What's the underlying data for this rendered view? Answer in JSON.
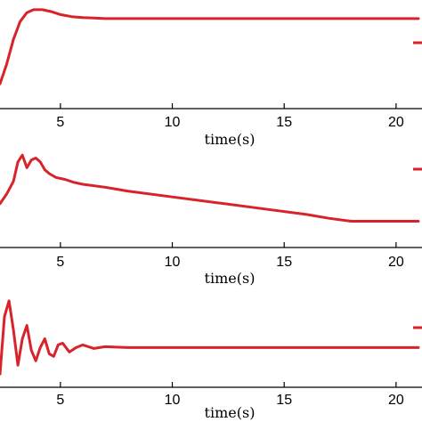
{
  "colors": {
    "series": "#d8232a",
    "axis": "#000000",
    "background": "#ffffff"
  },
  "chart_data": [
    {
      "type": "line",
      "xlabel": "time(s)",
      "xticks": [
        5,
        10,
        15,
        20
      ],
      "xlim": [
        2.3,
        21
      ],
      "ylim": [
        0,
        1.08
      ],
      "legend": "right, partially cropped",
      "grid": false,
      "series": [
        {
          "x": [
            2.3,
            2.6,
            2.9,
            3.2,
            3.5,
            3.8,
            4.2,
            4.6,
            5.0,
            5.5,
            6.0,
            6.5,
            7.0,
            8.0,
            9.0,
            21.0
          ],
          "y": [
            0.25,
            0.45,
            0.7,
            0.88,
            0.97,
            1.0,
            1.0,
            0.98,
            0.95,
            0.93,
            0.92,
            0.915,
            0.91,
            0.91,
            0.91,
            0.91
          ]
        }
      ]
    },
    {
      "type": "line",
      "xlabel": "time(s)",
      "xticks": [
        5,
        10,
        15,
        20
      ],
      "xlim": [
        2.3,
        21
      ],
      "ylim": [
        0,
        1.08
      ],
      "legend": "right, partially cropped",
      "grid": false,
      "series": [
        {
          "x": [
            2.3,
            2.6,
            2.9,
            3.1,
            3.3,
            3.5,
            3.7,
            3.9,
            4.1,
            4.3,
            4.5,
            4.8,
            5.2,
            5.6,
            6.0,
            7.0,
            8.0,
            10.0,
            12.0,
            14.0,
            16.0,
            17.0,
            18.0,
            21.0
          ],
          "y": [
            0.45,
            0.55,
            0.68,
            0.88,
            0.95,
            0.82,
            0.9,
            0.92,
            0.88,
            0.8,
            0.76,
            0.72,
            0.7,
            0.67,
            0.65,
            0.62,
            0.58,
            0.52,
            0.46,
            0.4,
            0.34,
            0.3,
            0.27,
            0.27
          ]
        }
      ]
    },
    {
      "type": "line",
      "xlabel": "time(s)",
      "xticks": [
        5,
        10,
        15,
        20
      ],
      "xlim": [
        2.3,
        21
      ],
      "ylim": [
        0,
        1.08
      ],
      "legend": "right, partially cropped",
      "grid": false,
      "series": [
        {
          "x": [
            2.3,
            2.5,
            2.7,
            2.9,
            3.1,
            3.3,
            3.5,
            3.7,
            3.9,
            4.1,
            4.3,
            4.5,
            4.7,
            4.9,
            5.1,
            5.4,
            5.7,
            6.0,
            6.5,
            7.0,
            8.0,
            9.0,
            21.0
          ],
          "y": [
            0.15,
            0.8,
            0.98,
            0.65,
            0.25,
            0.55,
            0.7,
            0.42,
            0.3,
            0.45,
            0.55,
            0.38,
            0.35,
            0.48,
            0.5,
            0.4,
            0.45,
            0.48,
            0.44,
            0.46,
            0.45,
            0.45,
            0.45
          ]
        }
      ]
    }
  ]
}
